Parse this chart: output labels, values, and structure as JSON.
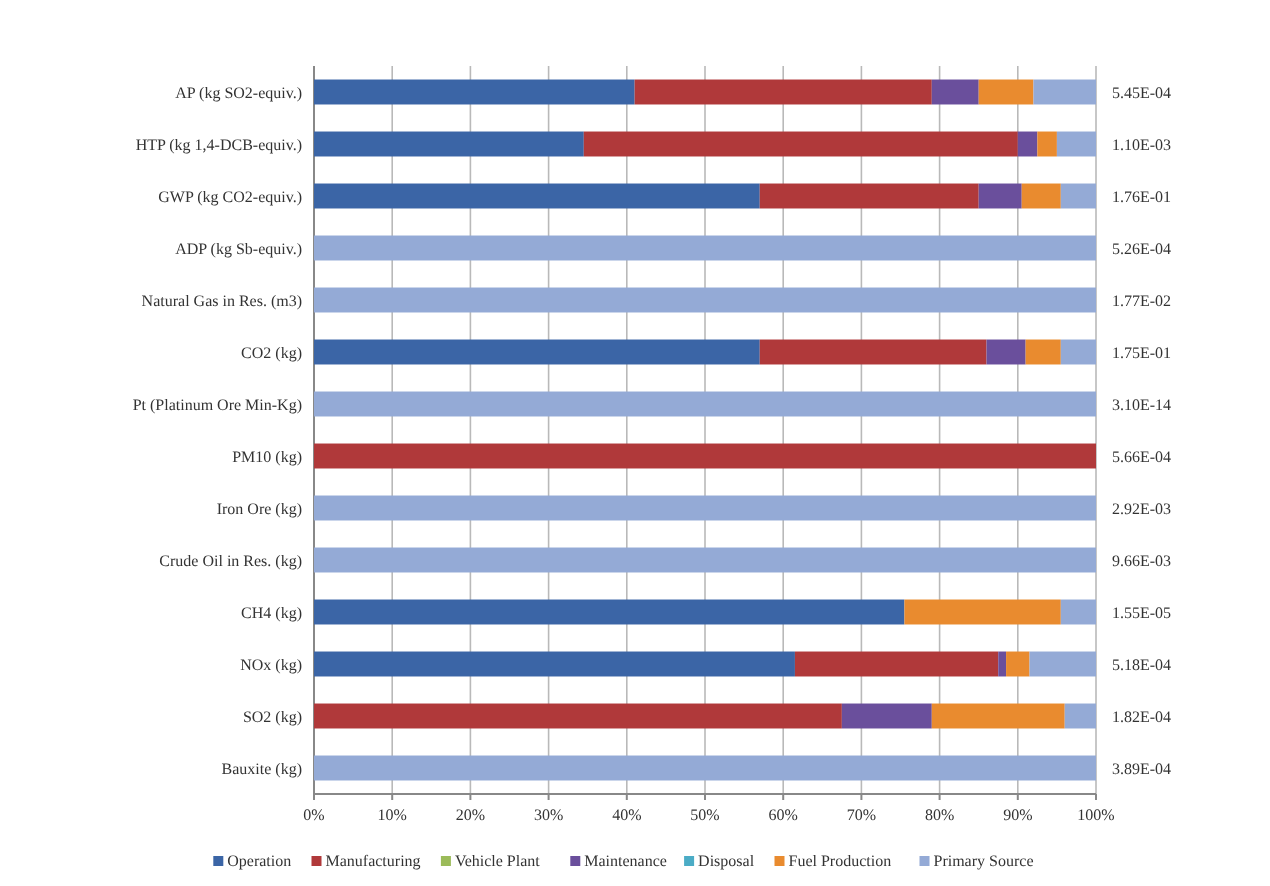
{
  "chart_data": {
    "type": "bar",
    "orientation": "horizontal",
    "stacked": true,
    "categories": [
      "AP (kg SO2-equiv.)",
      "HTP (kg 1,4-DCB-equiv.)",
      "GWP (kg CO2-equiv.)",
      "ADP (kg Sb-equiv.)",
      "Natural Gas in Res. (m3)",
      "CO2 (kg)",
      "Pt (Platinum Ore Min-Kg)",
      "PM10 (kg)",
      "Iron Ore (kg)",
      "Crude Oil in Res. (kg)",
      "CH4 (kg)",
      "NOx (kg)",
      "SO2 (kg)",
      "Bauxite (kg)"
    ],
    "series": [
      {
        "name": "Operation",
        "color": "#3b65a6",
        "values": [
          41,
          34.5,
          57,
          0,
          0,
          57,
          0,
          0,
          0,
          0,
          75.5,
          61.5,
          0,
          0
        ]
      },
      {
        "name": "Manufacturing",
        "color": "#b0393a",
        "values": [
          38,
          55.5,
          28,
          0,
          0,
          29,
          0,
          100,
          0,
          0,
          0,
          26,
          67.5,
          0
        ]
      },
      {
        "name": "Vehicle Plant",
        "color": "#9bbb59",
        "values": [
          0,
          0,
          0,
          0,
          0,
          0,
          0,
          0,
          0,
          0,
          0,
          0,
          0,
          0
        ]
      },
      {
        "name": "Maintenance",
        "color": "#6a4f9c",
        "values": [
          6,
          2.5,
          5.5,
          0,
          0,
          5,
          0,
          0,
          0,
          0,
          0,
          1,
          11.5,
          0
        ]
      },
      {
        "name": "Disposal",
        "color": "#4bacc6",
        "values": [
          0,
          0,
          0,
          0,
          0,
          0,
          0,
          0,
          0,
          0,
          0,
          0,
          0,
          0
        ]
      },
      {
        "name": "Fuel Production",
        "color": "#e98b2f",
        "values": [
          7,
          2.5,
          5,
          0,
          0,
          4.5,
          0,
          0,
          0,
          0,
          20,
          3,
          17,
          0
        ]
      },
      {
        "name": "Primary Source",
        "color": "#94aad6",
        "values": [
          8,
          5,
          4.5,
          100,
          100,
          4.5,
          100,
          0,
          100,
          100,
          4.5,
          8.5,
          4,
          100
        ]
      }
    ],
    "annotations": [
      "5.45E-04",
      "1.10E-03",
      "1.76E-01",
      "5.26E-04",
      "1.77E-02",
      "1.75E-01",
      "3.10E-14",
      "5.66E-04",
      "2.92E-03",
      "9.66E-03",
      "1.55E-05",
      "5.18E-04",
      "1.82E-04",
      "3.89E-04"
    ],
    "xlim": [
      0,
      100
    ],
    "xticks": [
      {
        "value": 0,
        "label": "0%"
      },
      {
        "value": 10,
        "label": "10%"
      },
      {
        "value": 20,
        "label": "20%"
      },
      {
        "value": 30,
        "label": "30%"
      },
      {
        "value": 40,
        "label": "40%"
      },
      {
        "value": 50,
        "label": "50%"
      },
      {
        "value": 60,
        "label": "60%"
      },
      {
        "value": 70,
        "label": "70%"
      },
      {
        "value": 80,
        "label": "80%"
      },
      {
        "value": 90,
        "label": "90%"
      },
      {
        "value": 100,
        "label": "100%"
      }
    ],
    "grid": "x",
    "legend": "bottom"
  }
}
